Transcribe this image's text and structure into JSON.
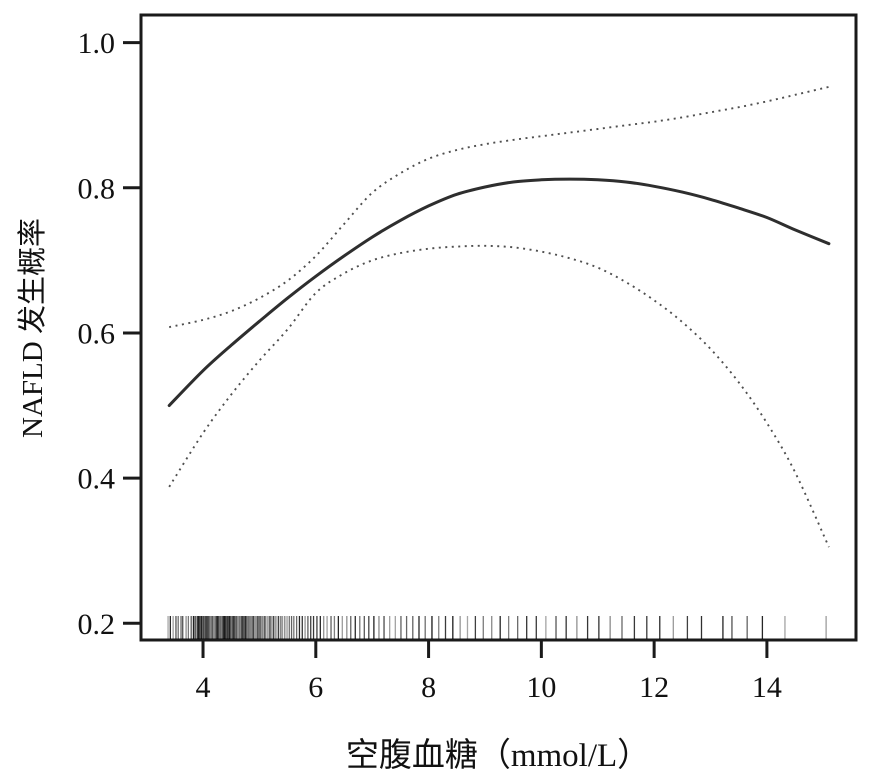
{
  "chart_data": {
    "type": "line",
    "title": "",
    "xlabel": "空腹血糖（mmol/L）",
    "ylabel": "NAFLD 发生概率",
    "xlim": [
      2.9,
      15.58
    ],
    "ylim": [
      0.177,
      1.038
    ],
    "grid": false,
    "legend_position": "none",
    "x_ticks": [
      4,
      6,
      8,
      10,
      12,
      14
    ],
    "x_tick_labels": [
      "4",
      "6",
      "8",
      "10",
      "12",
      "14"
    ],
    "y_ticks": [
      0.2,
      0.4,
      0.6,
      0.8,
      1.0
    ],
    "y_tick_labels": [
      "0.2",
      "0.4",
      "0.6",
      "0.8",
      "1.0"
    ],
    "x": [
      3.4,
      4.0,
      4.5,
      5.0,
      5.5,
      6.0,
      6.5,
      7.0,
      7.5,
      8.0,
      8.5,
      9.0,
      9.5,
      10.0,
      10.5,
      11.0,
      11.5,
      12.0,
      12.5,
      13.0,
      13.5,
      14.0,
      14.5,
      15.1
    ],
    "series": [
      {
        "name": "fitted-probability",
        "style": "solid",
        "y": [
          0.5,
          0.548,
          0.583,
          0.616,
          0.648,
          0.678,
          0.706,
          0.732,
          0.755,
          0.775,
          0.791,
          0.801,
          0.808,
          0.811,
          0.812,
          0.811,
          0.808,
          0.802,
          0.794,
          0.784,
          0.772,
          0.759,
          0.742,
          0.723
        ]
      },
      {
        "name": "upper-confidence-band",
        "style": "dotted",
        "y": [
          0.608,
          0.618,
          0.63,
          0.648,
          0.672,
          0.706,
          0.75,
          0.793,
          0.82,
          0.84,
          0.852,
          0.86,
          0.866,
          0.871,
          0.876,
          0.881,
          0.886,
          0.891,
          0.897,
          0.904,
          0.911,
          0.919,
          0.928,
          0.939
        ]
      },
      {
        "name": "lower-confidence-band",
        "style": "dotted",
        "y": [
          0.388,
          0.462,
          0.515,
          0.562,
          0.605,
          0.655,
          0.682,
          0.7,
          0.71,
          0.716,
          0.719,
          0.72,
          0.718,
          0.712,
          0.703,
          0.69,
          0.67,
          0.645,
          0.615,
          0.578,
          0.532,
          0.476,
          0.408,
          0.305
        ]
      }
    ],
    "rug_x": [
      3.38,
      3.42,
      3.47,
      3.52,
      3.56,
      3.61,
      3.64,
      3.7,
      3.74,
      3.79,
      3.83,
      3.86,
      3.89,
      3.91,
      3.93,
      3.95,
      3.97,
      3.99,
      4.01,
      4.03,
      4.05,
      4.07,
      4.09,
      4.11,
      4.13,
      4.15,
      4.17,
      4.19,
      4.21,
      4.23,
      4.25,
      4.27,
      4.29,
      4.31,
      4.33,
      4.35,
      4.37,
      4.39,
      4.41,
      4.43,
      4.45,
      4.47,
      4.49,
      4.51,
      4.53,
      4.55,
      4.57,
      4.59,
      4.61,
      4.63,
      4.65,
      4.67,
      4.69,
      4.71,
      4.73,
      4.75,
      4.77,
      4.79,
      4.81,
      4.83,
      4.85,
      4.87,
      4.89,
      4.91,
      4.93,
      4.95,
      4.97,
      4.99,
      5.01,
      5.03,
      5.06,
      5.09,
      5.11,
      5.14,
      5.17,
      5.19,
      5.22,
      5.25,
      5.28,
      5.31,
      5.34,
      5.38,
      5.41,
      5.45,
      5.49,
      5.53,
      5.57,
      5.61,
      5.66,
      5.71,
      5.76,
      5.81,
      5.86,
      5.91,
      5.96,
      6.02,
      6.08,
      6.14,
      6.2,
      6.27,
      6.33,
      6.4,
      6.47,
      6.55,
      6.62,
      6.7,
      6.78,
      6.86,
      6.94,
      7.03,
      7.12,
      7.21,
      7.31,
      7.41,
      7.51,
      7.61,
      7.72,
      7.83,
      7.94,
      8.06,
      8.18,
      8.3,
      8.43,
      8.56,
      8.69,
      8.83,
      8.97,
      9.12,
      9.27,
      9.42,
      9.58,
      9.74,
      9.91,
      10.08,
      10.26,
      10.44,
      10.63,
      10.82,
      11.02,
      11.22,
      11.43,
      11.65,
      11.87,
      12.1,
      12.34,
      12.59,
      12.84,
      13.22,
      13.38,
      13.65,
      13.92,
      14.32,
      15.05
    ],
    "colors": {
      "line": "#2e2e2e",
      "ci": "#4f4f4f",
      "axis": "#1a1a1a",
      "text": "#111111",
      "background": "#ffffff"
    }
  }
}
